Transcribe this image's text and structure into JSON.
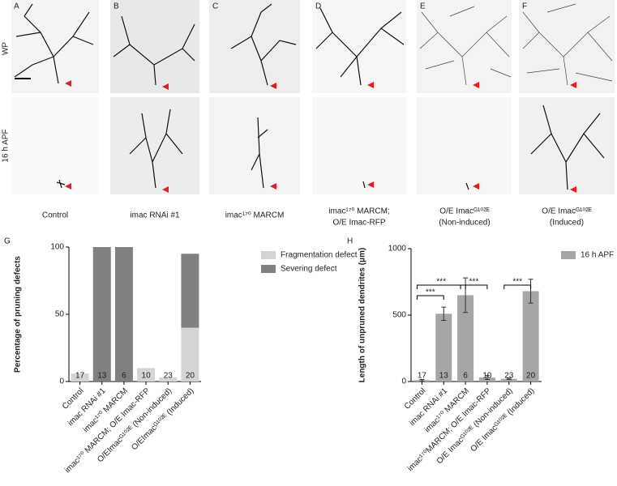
{
  "panels": {
    "letters": [
      "A",
      "B",
      "C",
      "D",
      "E",
      "F"
    ],
    "rows": [
      "WP",
      "16 h APF"
    ],
    "conditions": [
      [
        "Control"
      ],
      [
        "imac RNAi #1"
      ],
      [
        "imac¹⁷⁰ MARCM"
      ],
      [
        "imac¹⁷⁰ MARCM;",
        "O/E Imac-RFP"
      ],
      [
        "O/E Imacᴳ¹⁰²ᴱ",
        "(Non-induced)"
      ],
      [
        "O/E Imacᴳ¹⁰²ᴱ",
        "(Induced)"
      ]
    ]
  },
  "chart_data": [
    {
      "type": "stacked_bar",
      "panel_label": "G",
      "ylabel": "Percentage of pruning defects",
      "categories": [
        "Control",
        "imac RNAi #1",
        "imac¹⁷⁰ MARCM",
        "imac¹⁷⁰ MARCM; O/E Imac-RFP",
        "O/EImacᴳ¹⁰²ᴱ (Non-induced)",
        "O/EImacᴳ¹⁰²ᴱ (Induced)"
      ],
      "series": [
        {
          "name": "Fragmentation defect",
          "color": "#d4d4d4",
          "values": [
            6,
            0,
            0,
            10,
            3,
            40
          ]
        },
        {
          "name": "Severing defect",
          "color": "#808080",
          "values": [
            0,
            100,
            100,
            0,
            0,
            55
          ]
        }
      ],
      "n_labels": [
        17,
        13,
        6,
        10,
        23,
        20
      ],
      "ylim": [
        0,
        100
      ],
      "yticks": [
        0,
        50,
        100
      ],
      "legend": "right"
    },
    {
      "type": "bar",
      "panel_label": "H",
      "ylabel": "Length of unpruned dendrites (μm)",
      "categories": [
        "Control",
        "imac RNAi #1",
        "imac¹⁷⁰ MARCM",
        "imac¹⁷⁰MARCM; O/E Imac-RFP",
        "O/E Imacᴳ¹⁰²ᴱ (Non-induced)",
        "O/E Imacᴳ¹⁰²ᴱ (Induced)"
      ],
      "series": [
        {
          "name": "16 h APF",
          "color": "#a6a6a6",
          "values": [
            10,
            510,
            650,
            30,
            20,
            680
          ],
          "errors": [
            5,
            50,
            130,
            15,
            5,
            90
          ]
        }
      ],
      "n_labels": [
        17,
        13,
        6,
        10,
        23,
        20
      ],
      "ylim": [
        0,
        1000
      ],
      "yticks": [
        0,
        500,
        1000
      ],
      "legend": "right",
      "significance": [
        {
          "from": 0,
          "to": 1,
          "label": "***"
        },
        {
          "from": 0,
          "to": 2,
          "label": "***"
        },
        {
          "from": 2,
          "to": 3,
          "label": "***"
        },
        {
          "from": 4,
          "to": 5,
          "label": "***"
        }
      ]
    }
  ]
}
